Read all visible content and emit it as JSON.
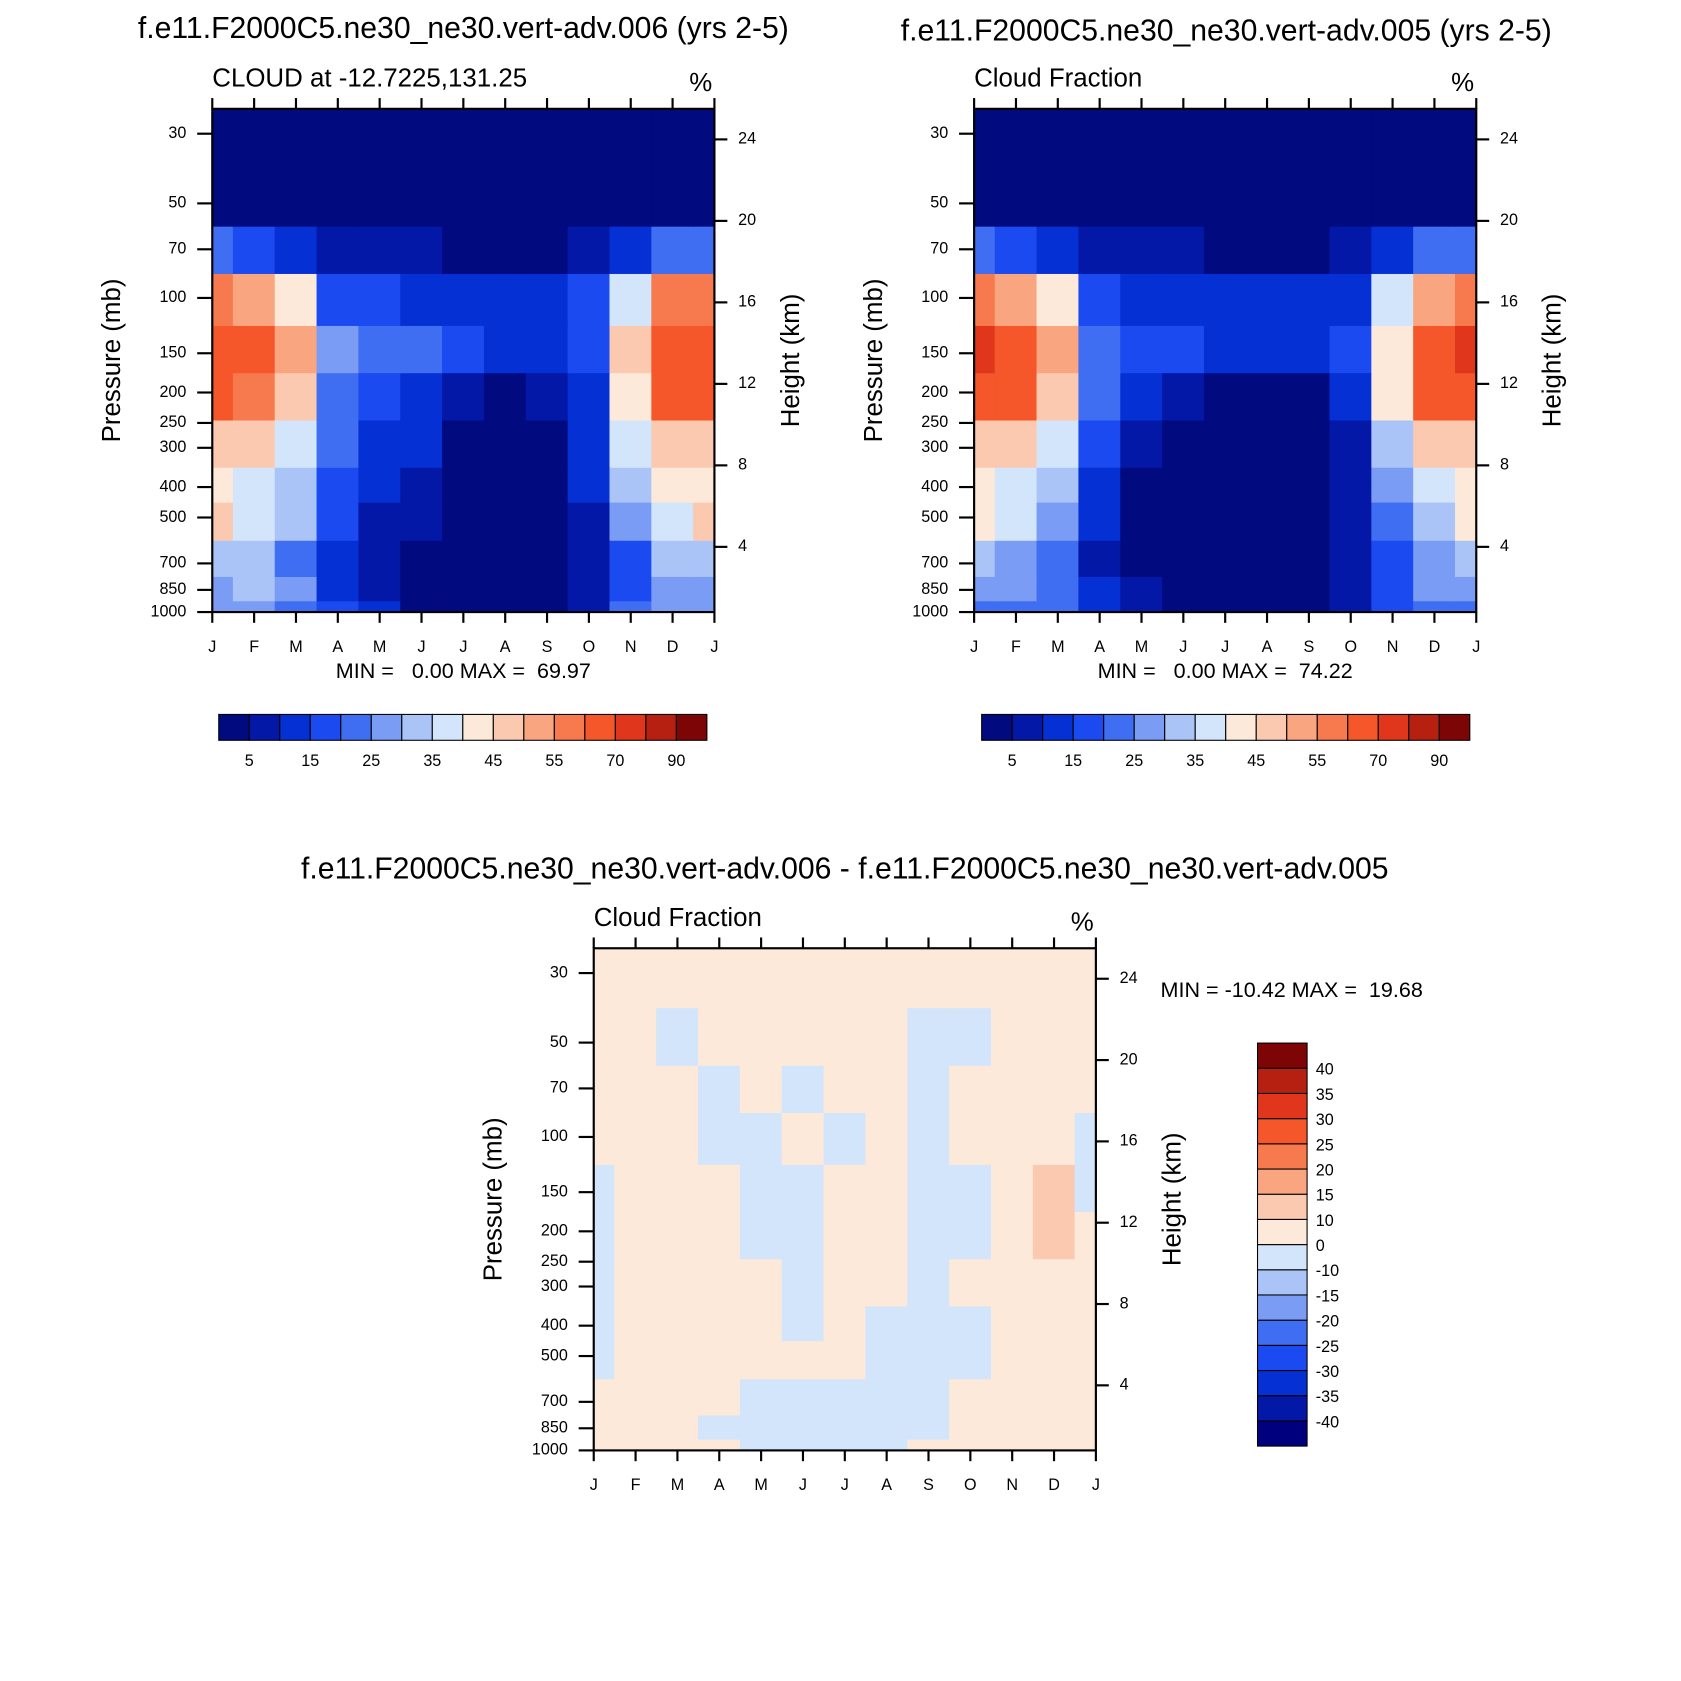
{
  "chart_data": [
    {
      "type": "contour",
      "title": "f.e11.F2000C5.ne30_ne30.vert-adv.006 (yrs 2-5)",
      "subtitle": "CLOUD at -12.7225,131.25",
      "units": "%",
      "stats": "MIN =   0.00 MAX =  69.97",
      "ylabel": "Pressure (mb)",
      "y2label": "Height (km)",
      "categories": [
        "J",
        "F",
        "M",
        "A",
        "M",
        "J",
        "J",
        "A",
        "S",
        "O",
        "N",
        "D",
        "J"
      ],
      "y": [
        1000,
        850,
        700,
        500,
        400,
        300,
        200,
        150,
        100,
        70,
        50,
        30
      ],
      "log_y": true,
      "ylim": [
        1000,
        25
      ],
      "yticks": [
        30,
        50,
        70,
        100,
        150,
        200,
        250,
        300,
        400,
        500,
        700,
        850,
        1000
      ],
      "y2lim": [
        0.8,
        25.5
      ],
      "y2ticks": [
        4,
        8,
        12,
        16,
        20,
        24
      ],
      "z": [
        [
          25,
          25,
          22,
          15,
          10,
          3,
          3,
          3,
          3,
          5,
          20,
          25,
          25
        ],
        [
          28,
          30,
          25,
          12,
          8,
          3,
          2,
          2,
          2,
          5,
          18,
          28,
          28
        ],
        [
          30,
          30,
          20,
          10,
          8,
          3,
          2,
          2,
          2,
          5,
          15,
          30,
          30
        ],
        [
          45,
          35,
          30,
          15,
          8,
          5,
          2,
          2,
          2,
          8,
          25,
          35,
          45
        ],
        [
          40,
          38,
          32,
          18,
          10,
          8,
          2,
          2,
          2,
          10,
          30,
          42,
          40
        ],
        [
          45,
          45,
          38,
          20,
          12,
          10,
          3,
          2,
          2,
          12,
          35,
          45,
          45
        ],
        [
          60,
          58,
          45,
          22,
          15,
          12,
          8,
          3,
          5,
          12,
          40,
          62,
          60
        ],
        [
          65,
          65,
          50,
          25,
          20,
          20,
          15,
          12,
          10,
          18,
          45,
          65,
          65
        ],
        [
          55,
          50,
          40,
          18,
          15,
          12,
          12,
          10,
          12,
          15,
          35,
          55,
          55
        ],
        [
          20,
          15,
          10,
          5,
          5,
          5,
          4,
          4,
          4,
          6,
          12,
          20,
          20
        ],
        [
          2,
          2,
          2,
          2,
          2,
          2,
          2,
          2,
          2,
          2,
          2,
          2,
          2
        ],
        [
          1,
          1,
          1,
          1,
          1,
          1,
          1,
          1,
          1,
          1,
          1,
          1,
          1
        ]
      ],
      "levels": [
        5,
        10,
        15,
        20,
        25,
        30,
        35,
        40,
        45,
        50,
        55,
        60,
        70,
        80,
        90
      ],
      "colors": [
        "#020a80",
        "#0418a8",
        "#0530d4",
        "#1a4af0",
        "#3f6ef2",
        "#7a9cf4",
        "#aac4f8",
        "#d3e5fb",
        "#fde9d9",
        "#fbc9b0",
        "#f9a680",
        "#f77a4e",
        "#f5562a",
        "#e0361b",
        "#b52010",
        "#7d0505"
      ],
      "colorbar_ticks": [
        5,
        15,
        25,
        35,
        45,
        55,
        70,
        90
      ]
    },
    {
      "type": "contour",
      "title": "f.e11.F2000C5.ne30_ne30.vert-adv.005 (yrs 2-5)",
      "subtitle": "Cloud Fraction",
      "units": "%",
      "stats": "MIN =   0.00 MAX =  74.22",
      "ylabel": "Pressure (mb)",
      "y2label": "Height (km)",
      "categories": [
        "J",
        "F",
        "M",
        "A",
        "M",
        "J",
        "J",
        "A",
        "S",
        "O",
        "N",
        "D",
        "J"
      ],
      "y": [
        1000,
        850,
        700,
        500,
        400,
        300,
        200,
        150,
        100,
        70,
        50,
        30
      ],
      "log_y": true,
      "ylim": [
        1000,
        25
      ],
      "yticks": [
        30,
        50,
        70,
        100,
        150,
        200,
        250,
        300,
        400,
        500,
        700,
        850,
        1000
      ],
      "y2lim": [
        0.8,
        25.5
      ],
      "y2ticks": [
        4,
        8,
        12,
        16,
        20,
        24
      ],
      "z": [
        [
          20,
          22,
          20,
          12,
          8,
          3,
          2,
          2,
          3,
          5,
          18,
          22,
          20
        ],
        [
          25,
          25,
          22,
          10,
          5,
          2,
          1,
          1,
          2,
          5,
          15,
          25,
          25
        ],
        [
          30,
          28,
          20,
          8,
          4,
          1,
          1,
          1,
          1,
          5,
          15,
          28,
          30
        ],
        [
          40,
          35,
          25,
          10,
          4,
          1,
          1,
          1,
          1,
          5,
          20,
          30,
          40
        ],
        [
          40,
          38,
          30,
          12,
          4,
          1,
          1,
          1,
          1,
          5,
          25,
          38,
          40
        ],
        [
          48,
          48,
          35,
          15,
          8,
          2,
          1,
          1,
          1,
          8,
          32,
          45,
          48
        ],
        [
          62,
          62,
          45,
          20,
          12,
          8,
          2,
          2,
          2,
          10,
          40,
          60,
          62
        ],
        [
          72,
          68,
          50,
          22,
          15,
          15,
          12,
          12,
          12,
          15,
          42,
          62,
          70
        ],
        [
          55,
          50,
          40,
          15,
          12,
          10,
          10,
          10,
          10,
          12,
          35,
          50,
          55
        ],
        [
          20,
          15,
          10,
          5,
          5,
          5,
          4,
          4,
          4,
          6,
          12,
          20,
          20
        ],
        [
          2,
          2,
          2,
          2,
          2,
          2,
          2,
          2,
          2,
          2,
          2,
          2,
          2
        ],
        [
          1,
          1,
          1,
          1,
          1,
          1,
          1,
          1,
          1,
          1,
          1,
          1,
          1
        ]
      ],
      "levels": [
        5,
        10,
        15,
        20,
        25,
        30,
        35,
        40,
        45,
        50,
        55,
        60,
        70,
        80,
        90
      ],
      "colors": [
        "#020a80",
        "#0418a8",
        "#0530d4",
        "#1a4af0",
        "#3f6ef2",
        "#7a9cf4",
        "#aac4f8",
        "#d3e5fb",
        "#fde9d9",
        "#fbc9b0",
        "#f9a680",
        "#f77a4e",
        "#f5562a",
        "#e0361b",
        "#b52010",
        "#7d0505"
      ],
      "colorbar_ticks": [
        5,
        15,
        25,
        35,
        45,
        55,
        70,
        90
      ]
    },
    {
      "type": "contour",
      "title": "f.e11.F2000C5.ne30_ne30.vert-adv.006 - f.e11.F2000C5.ne30_ne30.vert-adv.005",
      "subtitle": "Cloud Fraction",
      "units": "%",
      "stats": "MIN = -10.42 MAX =  19.68",
      "ylabel": "Pressure (mb)",
      "y2label": "Height (km)",
      "categories": [
        "J",
        "F",
        "M",
        "A",
        "M",
        "J",
        "J",
        "A",
        "S",
        "O",
        "N",
        "D",
        "J"
      ],
      "y": [
        1000,
        850,
        700,
        500,
        400,
        300,
        200,
        150,
        100,
        70,
        50,
        30
      ],
      "log_y": true,
      "ylim": [
        1000,
        25
      ],
      "yticks": [
        30,
        50,
        70,
        100,
        150,
        200,
        250,
        300,
        400,
        500,
        700,
        850,
        1000
      ],
      "y2lim": [
        0.8,
        25.5
      ],
      "y2ticks": [
        4,
        8,
        12,
        16,
        20,
        24
      ],
      "z": [
        [
          3,
          3,
          3,
          3,
          -2,
          -2,
          -2,
          -2,
          2,
          2,
          2,
          2,
          2
        ],
        [
          3,
          3,
          3,
          -2,
          -2,
          -2,
          -2,
          -2,
          -2,
          2,
          2,
          2,
          2
        ],
        [
          3,
          3,
          3,
          3,
          -2,
          -2,
          -2,
          -2,
          -2,
          2,
          2,
          2,
          2
        ],
        [
          -2,
          3,
          3,
          3,
          3,
          3,
          2,
          -2,
          -2,
          -2,
          2,
          2,
          2
        ],
        [
          -2,
          3,
          3,
          3,
          3,
          -2,
          3,
          -2,
          -2,
          -2,
          2,
          3,
          2
        ],
        [
          -2,
          3,
          3,
          3,
          3,
          -2,
          3,
          3,
          -2,
          2,
          2,
          8,
          2
        ],
        [
          -2,
          3,
          3,
          3,
          -2,
          -2,
          3,
          3,
          -2,
          -2,
          2,
          14,
          2
        ],
        [
          -2,
          2,
          2,
          3,
          -2,
          -2,
          3,
          3,
          -2,
          -2,
          2,
          12,
          -2
        ],
        [
          2,
          2,
          2,
          -2,
          -2,
          2,
          -2,
          2,
          -2,
          2,
          2,
          5,
          -2
        ],
        [
          2,
          2,
          2,
          -2,
          2,
          -2,
          2,
          2,
          -2,
          2,
          2,
          2,
          2
        ],
        [
          2,
          2,
          -2,
          2,
          2,
          2,
          2,
          2,
          -2,
          -2,
          2,
          2,
          2
        ],
        [
          2,
          2,
          2,
          2,
          2,
          2,
          2,
          2,
          2,
          2,
          2,
          2,
          2
        ]
      ],
      "levels": [
        -40,
        -35,
        -30,
        -25,
        -20,
        -15,
        -10,
        0,
        10,
        15,
        20,
        25,
        30,
        35,
        40
      ],
      "colors": [
        "#00007f",
        "#0418a8",
        "#0530d4",
        "#1a4af0",
        "#3f6ef2",
        "#7a9cf4",
        "#aac4f8",
        "#d3e5fb",
        "#fde9d9",
        "#fbc9b0",
        "#f9a680",
        "#f77a4e",
        "#f5562a",
        "#e0361b",
        "#b52010",
        "#7d0505"
      ],
      "colorbar_ticks": [
        -40,
        -35,
        -30,
        -25,
        -20,
        -15,
        -10,
        0,
        10,
        15,
        20,
        25,
        30,
        35,
        40
      ]
    }
  ]
}
